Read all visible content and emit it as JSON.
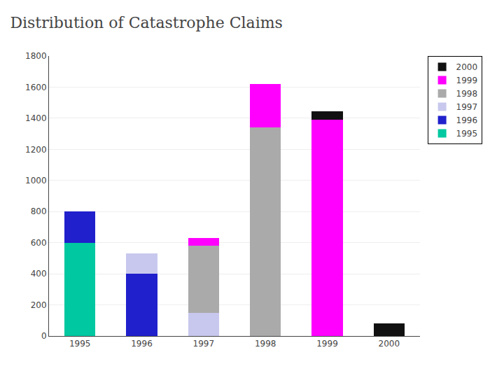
{
  "chart_data": {
    "type": "bar",
    "title": "Distribution of Catastrophe Claims",
    "categories": [
      "1995",
      "1996",
      "1997",
      "1998",
      "1999",
      "2000"
    ],
    "series": [
      {
        "name": "1995",
        "color": "#00C8A0",
        "values": [
          600,
          0,
          0,
          0,
          0,
          0
        ]
      },
      {
        "name": "1996",
        "color": "#2020CC",
        "values": [
          200,
          400,
          0,
          0,
          0,
          0
        ]
      },
      {
        "name": "1997",
        "color": "#C8C8EE",
        "values": [
          0,
          130,
          150,
          0,
          0,
          0
        ]
      },
      {
        "name": "1998",
        "color": "#AAAAAA",
        "values": [
          0,
          0,
          430,
          1340,
          0,
          0
        ]
      },
      {
        "name": "1999",
        "color": "#FF00FF",
        "values": [
          0,
          0,
          50,
          280,
          1390,
          0
        ]
      },
      {
        "name": "2000",
        "color": "#111111",
        "values": [
          0,
          0,
          0,
          0,
          55,
          80
        ]
      }
    ],
    "stacked": true,
    "ylim": [
      0,
      1800
    ],
    "yticks": [
      0,
      200,
      400,
      600,
      800,
      1000,
      1200,
      1400,
      1600,
      1800
    ],
    "grid": true,
    "legend": "right"
  }
}
